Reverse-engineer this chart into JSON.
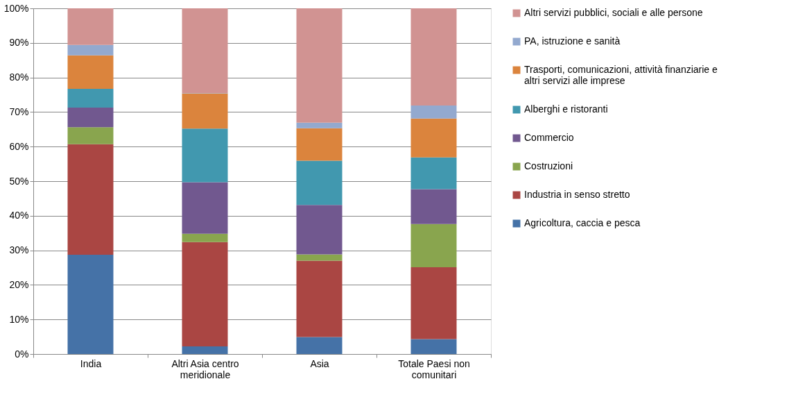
{
  "chart_data": {
    "type": "bar",
    "stacked": true,
    "categories": [
      "India",
      "Altri Asia centro meridionale",
      "Asia",
      "Totale Paesi non comunitari"
    ],
    "ylim": [
      0,
      100
    ],
    "yticks": [
      {
        "value": 0,
        "label": "0%"
      },
      {
        "value": 10,
        "label": "10%"
      },
      {
        "value": 20,
        "label": "20%"
      },
      {
        "value": 30,
        "label": "30%"
      },
      {
        "value": 40,
        "label": "40%"
      },
      {
        "value": 50,
        "label": "50%"
      },
      {
        "value": 60,
        "label": "60%"
      },
      {
        "value": 70,
        "label": "70%"
      },
      {
        "value": 80,
        "label": "80%"
      },
      {
        "value": 90,
        "label": "90%"
      },
      {
        "value": 100,
        "label": "100%"
      }
    ],
    "grid": "y",
    "legend": "right",
    "series": [
      {
        "name": "Agricoltura, caccia e pesca",
        "color": "#4572a7",
        "values": [
          28.7,
          2.2,
          4.9,
          4.3
        ]
      },
      {
        "name": "Industria in senso stretto",
        "color": "#aa4643",
        "values": [
          32.0,
          30.2,
          22.1,
          20.8
        ]
      },
      {
        "name": "Costruzioni",
        "color": "#89a54e",
        "values": [
          4.9,
          2.4,
          1.8,
          12.5
        ]
      },
      {
        "name": "Commercio",
        "color": "#71588f",
        "values": [
          5.7,
          14.9,
          14.3,
          10.1
        ]
      },
      {
        "name": "Alberghi e ristoranti",
        "color": "#4198af",
        "values": [
          5.4,
          15.5,
          12.8,
          9.2
        ]
      },
      {
        "name": "Trasporti, comunicazioni, attività finanziarie e altri servizi alle imprese",
        "color": "#db843d",
        "values": [
          9.7,
          10.2,
          9.4,
          11.2
        ]
      },
      {
        "name": "PA, istruzione e sanità",
        "color": "#93a9cf",
        "values": [
          3.0,
          0.1,
          1.6,
          3.8
        ]
      },
      {
        "name": "Altri servizi pubblici, sociali e alle persone",
        "color": "#d19392",
        "values": [
          10.6,
          24.5,
          33.1,
          28.1
        ]
      }
    ]
  }
}
